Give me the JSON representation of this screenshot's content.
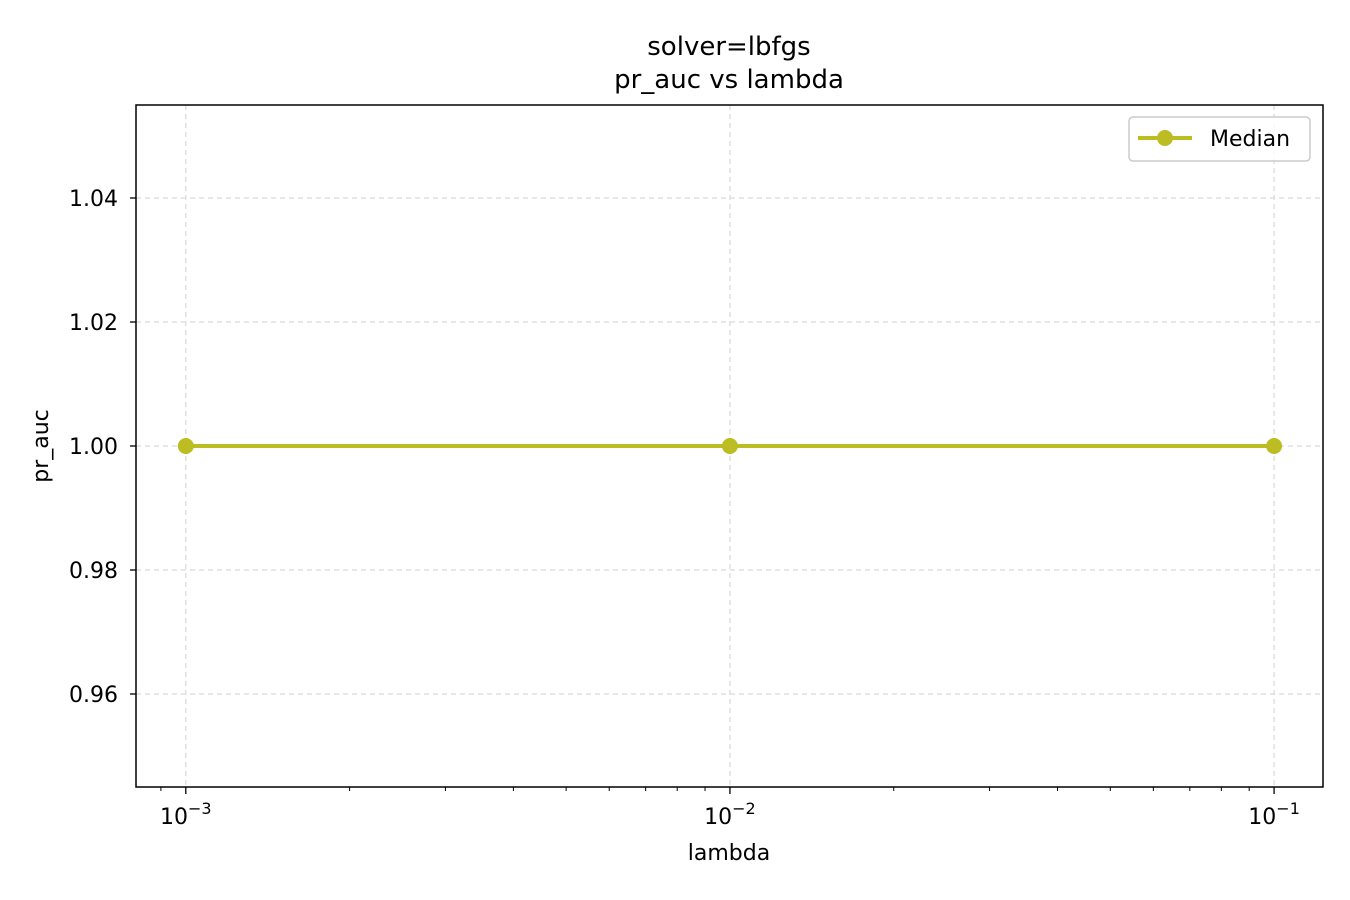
{
  "chart_data": {
    "type": "line",
    "title": "solver=lbfgs",
    "subtitle": "pr_auc vs lambda",
    "xlabel": "lambda",
    "ylabel": "pr_auc",
    "xscale": "log",
    "xlim": [
      0.00081,
      0.123
    ],
    "ylim": [
      0.945,
      1.055
    ],
    "x_ticks": [
      {
        "value": 0.001,
        "base": "10",
        "exp": "−3"
      },
      {
        "value": 0.01,
        "base": "10",
        "exp": "−2"
      },
      {
        "value": 0.1,
        "base": "10",
        "exp": "−1"
      }
    ],
    "y_ticks": [
      {
        "value": 0.96,
        "label": "0.96"
      },
      {
        "value": 0.98,
        "label": "0.98"
      },
      {
        "value": 1.0,
        "label": "1.00"
      },
      {
        "value": 1.02,
        "label": "1.02"
      },
      {
        "value": 1.04,
        "label": "1.04"
      }
    ],
    "grid": true,
    "legend_position": "top-right",
    "series": [
      {
        "name": "Median",
        "color": "#bcbd22",
        "marker": "circle",
        "x": [
          0.001,
          0.01,
          0.1
        ],
        "y": [
          1.0,
          1.0,
          1.0
        ]
      }
    ]
  }
}
